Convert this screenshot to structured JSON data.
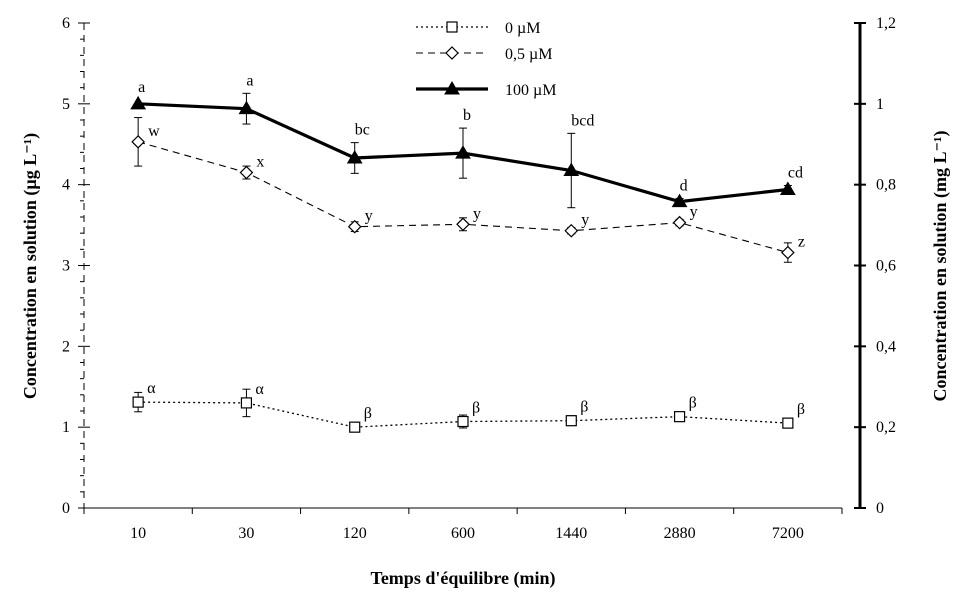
{
  "chart_data": {
    "type": "line",
    "xlabel": "Temps d'équilibre (min)",
    "ylabel_left": "Concentration en solution (µg L⁻¹)",
    "ylabel_right": "Concentration en solution (mg L⁻¹)",
    "categories": [
      "10",
      "30",
      "120",
      "600",
      "1440",
      "2880",
      "7200"
    ],
    "ylim_left": [
      0,
      6
    ],
    "yticks_left": [
      "0",
      "1",
      "2",
      "3",
      "4",
      "5",
      "6"
    ],
    "ylim_right": [
      0,
      1.2
    ],
    "yticks_right": [
      "0",
      "0,2",
      "0,4",
      "0,6",
      "0,8",
      "1",
      "1,2"
    ],
    "grid": false,
    "legend_position": "top-center",
    "series": [
      {
        "name": "0 µM",
        "axis": "left",
        "line_style": "dotted",
        "marker": "square-open",
        "values": [
          1.31,
          1.3,
          1.0,
          1.07,
          1.08,
          1.13,
          1.05
        ],
        "errors": [
          0.12,
          0.17,
          0.06,
          0.08,
          0.06,
          0.04,
          0.05
        ],
        "labels": [
          "α",
          "α",
          "β",
          "β",
          "β",
          "β",
          "β"
        ]
      },
      {
        "name": "0,5 µM",
        "axis": "left",
        "line_style": "dashed",
        "marker": "diamond-open",
        "values": [
          4.53,
          4.15,
          3.48,
          3.51,
          3.43,
          3.53,
          3.16
        ],
        "errors": [
          0.3,
          0.08,
          0.06,
          0.08,
          0.04,
          0.04,
          0.12
        ],
        "labels": [
          "w",
          "x",
          "y",
          "y",
          "y",
          "y",
          "z"
        ]
      },
      {
        "name": "100 µM",
        "axis": "right",
        "line_style": "solid",
        "marker": "triangle-filled",
        "values": [
          1.0,
          0.988,
          0.866,
          0.878,
          0.835,
          0.758,
          0.788
        ],
        "errors": [
          0.0,
          0.038,
          0.038,
          0.062,
          0.092,
          0.008,
          0.01
        ],
        "labels": [
          "a",
          "a",
          "bc",
          "b",
          "bcd",
          "d",
          "cd"
        ]
      }
    ]
  }
}
